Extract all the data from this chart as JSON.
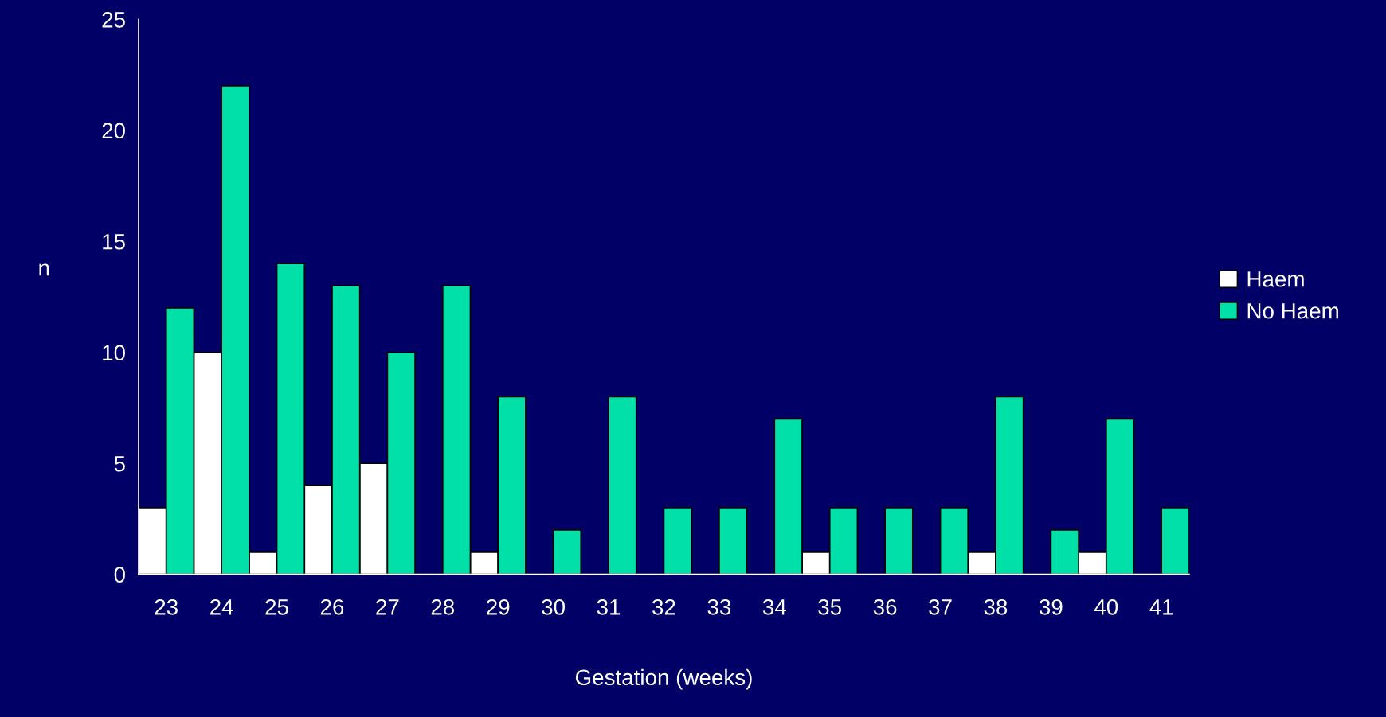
{
  "chart_data": {
    "type": "bar",
    "xlabel": "Gestation (weeks)",
    "ylabel": "n",
    "categories": [
      "23",
      "24",
      "25",
      "26",
      "27",
      "28",
      "29",
      "30",
      "31",
      "32",
      "33",
      "34",
      "35",
      "36",
      "37",
      "38",
      "39",
      "40",
      "41"
    ],
    "series": [
      {
        "name": "Haem",
        "color": "#ffffff",
        "values": [
          3,
          10,
          1,
          4,
          5,
          0,
          1,
          0,
          0,
          0,
          0,
          0,
          1,
          0,
          0,
          1,
          0,
          1,
          0
        ]
      },
      {
        "name": "No Haem",
        "color": "#00e0a8",
        "values": [
          12,
          22,
          14,
          13,
          10,
          13,
          8,
          2,
          8,
          3,
          3,
          7,
          3,
          3,
          3,
          8,
          2,
          7,
          3
        ]
      }
    ],
    "ylim": [
      0,
      25
    ],
    "yticks": [
      0,
      5,
      10,
      15,
      20,
      25
    ],
    "grid": false,
    "legend": "right"
  }
}
